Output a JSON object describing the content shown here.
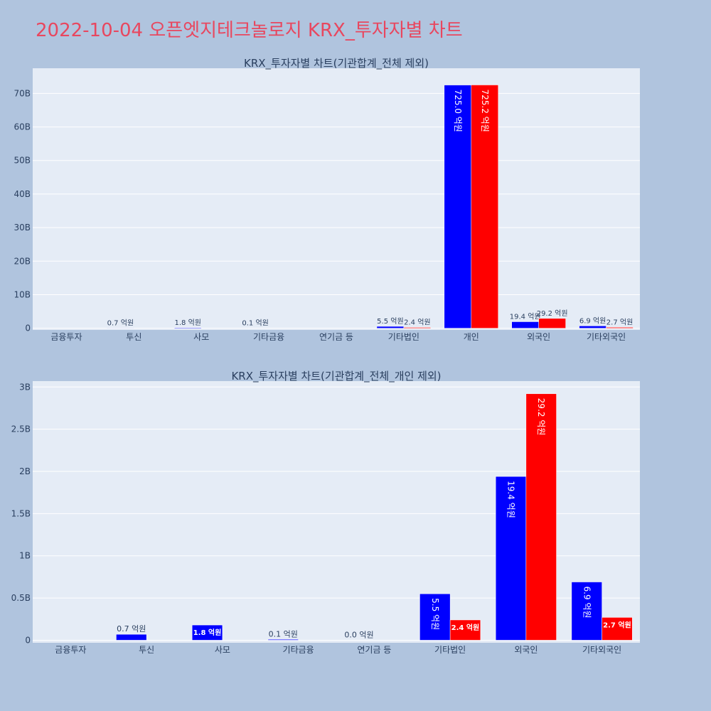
{
  "title": "2022-10-04 오픈엣지테크놀로지 KRX_투자자별 차트",
  "colors": {
    "buy": "#0000ff",
    "sell": "#ff0000",
    "title": "#e8475f"
  },
  "chart_data": [
    {
      "type": "bar",
      "title": "KRX_투자자별 차트(기관합계_전체 제외)",
      "categories": [
        "금융투자",
        "투신",
        "사모",
        "기타금융",
        "연기금 등",
        "기타법인",
        "개인",
        "외국인",
        "기타외국인"
      ],
      "series": [
        {
          "color": "#0000ff",
          "values": [
            0,
            70000000,
            180000000,
            10000000,
            0,
            550000000,
            72500000000,
            1940000000,
            690000000
          ]
        },
        {
          "color": "#ff0000",
          "values": [
            0,
            0,
            0,
            0,
            0,
            240000000,
            72520000000,
            2920000000,
            270000000
          ]
        }
      ],
      "labels": [
        [
          "",
          "0.7 억원",
          "1.8 억원",
          "0.1 억원",
          "",
          "5.5 억원",
          "725.0 억원",
          "19.4 억원",
          "6.9 억원"
        ],
        [
          "",
          "",
          "",
          "",
          "",
          "2.4 억원",
          "725.2 억원",
          "29.2 억원",
          "2.7 억원"
        ]
      ],
      "yticks": [
        0,
        10000000000,
        20000000000,
        30000000000,
        40000000000,
        50000000000,
        60000000000,
        70000000000
      ],
      "ytick_labels": [
        "0",
        "10B",
        "20B",
        "30B",
        "40B",
        "50B",
        "60B",
        "70B"
      ],
      "ylim": [
        -500000000,
        77500000000
      ]
    },
    {
      "type": "bar",
      "title": "KRX_투자자별 차트(기관합계_전체_개인 제외)",
      "categories": [
        "금융투자",
        "투신",
        "사모",
        "기타금융",
        "연기금 등",
        "기타법인",
        "외국인",
        "기타외국인"
      ],
      "series": [
        {
          "color": "#0000ff",
          "values": [
            0,
            70000000,
            180000000,
            10000000,
            0,
            550000000,
            1940000000,
            690000000
          ]
        },
        {
          "color": "#ff0000",
          "values": [
            0,
            0,
            0,
            0,
            0,
            240000000,
            2920000000,
            270000000
          ]
        }
      ],
      "labels": [
        [
          "",
          "0.7 억원",
          "1.8 억원",
          "0.1 억원",
          "0.0 억원",
          "5.5 억원",
          "19.4 억원",
          "6.9 억원"
        ],
        [
          "",
          "",
          "",
          "",
          "",
          "2.4 억원",
          "29.2 억원",
          "2.7 억원"
        ]
      ],
      "yticks": [
        0,
        500000000,
        1000000000,
        1500000000,
        2000000000,
        2500000000,
        3000000000
      ],
      "ytick_labels": [
        "0",
        "0.5B",
        "1B",
        "1.5B",
        "2B",
        "2.5B",
        "3B"
      ],
      "ylim": [
        -30000000,
        3070000000
      ]
    }
  ]
}
